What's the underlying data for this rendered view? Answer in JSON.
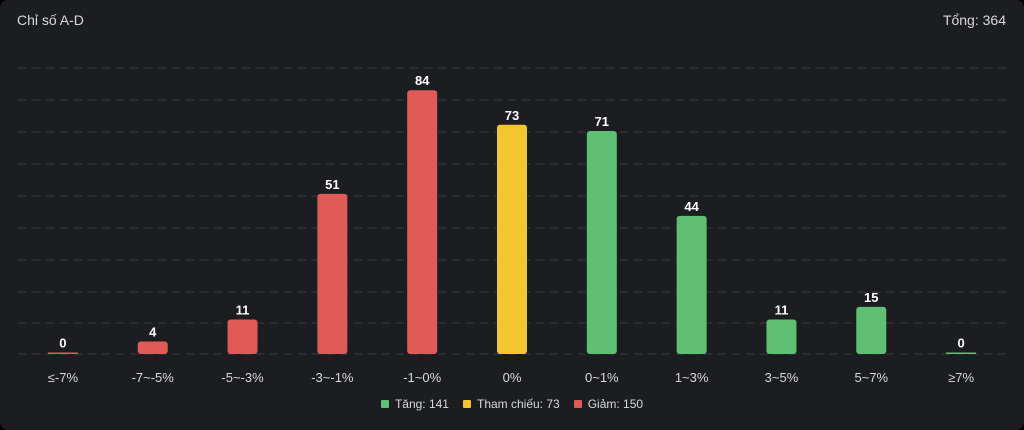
{
  "header": {
    "title": "Chỉ số A-D",
    "total": "Tổng: 364"
  },
  "colors": {
    "up": "#5fbf73",
    "ref": "#f2c531",
    "down": "#e05a57",
    "background": "#1c1d20",
    "grid": "#3a3b3f",
    "text": "#d9d9d9"
  },
  "legend": [
    {
      "label": "Tăng: 141",
      "color": "#5fbf73"
    },
    {
      "label": "Tham chiếu: 73",
      "color": "#f2c531"
    },
    {
      "label": "Giảm: 150",
      "color": "#e05a57"
    }
  ],
  "chart_data": {
    "type": "bar",
    "title": "Chỉ số A-D",
    "categories": [
      "≤-7%",
      "-7~-5%",
      "-5~-3%",
      "-3~-1%",
      "-1~0%",
      "0%",
      "0~1%",
      "1~3%",
      "3~5%",
      "5~7%",
      "≥7%"
    ],
    "values": [
      0,
      4,
      11,
      51,
      84,
      73,
      71,
      44,
      11,
      15,
      0
    ],
    "bar_groups": [
      "down",
      "down",
      "down",
      "down",
      "down",
      "ref",
      "up",
      "up",
      "up",
      "up",
      "up"
    ],
    "ylim": [
      0,
      90
    ],
    "grid": true,
    "legend_position": "bottom-center",
    "data_labels": true
  }
}
